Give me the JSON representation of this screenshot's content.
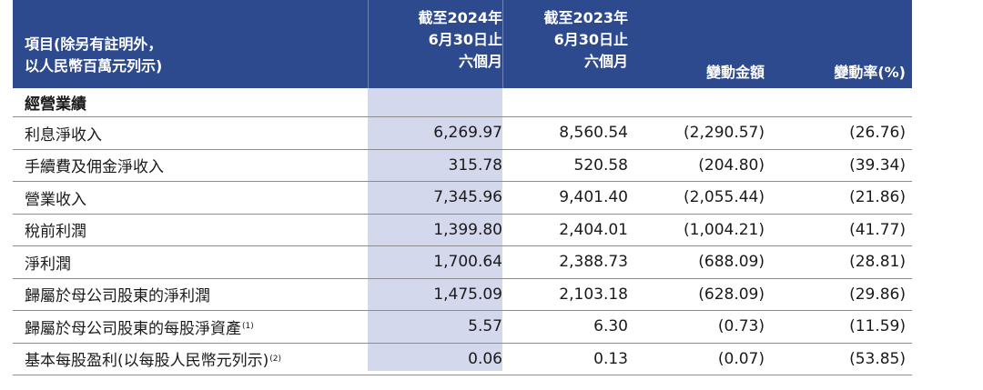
{
  "header": {
    "item_line1": "項目(除另有註明外，",
    "item_line2": "以人民幣百萬元列示)",
    "p2024_line1": "截至2024年",
    "p2024_line2": "6月30日止",
    "p2024_line3": "六個月",
    "p2023_line1": "截至2023年",
    "p2023_line2": "6月30日止",
    "p2023_line3": "六個月",
    "change": "變動金額",
    "rate": "變動率(%)"
  },
  "section_title": "經營業績",
  "rows": [
    {
      "label": "利息淨收入",
      "note": "",
      "v2024": "6,269.97",
      "v2023": "8,560.54",
      "change": "(2,290.57)",
      "rate": "(26.76)"
    },
    {
      "label": "手續費及佣金淨收入",
      "note": "",
      "v2024": "315.78",
      "v2023": "520.58",
      "change": "(204.80)",
      "rate": "(39.34)"
    },
    {
      "label": "營業收入",
      "note": "",
      "v2024": "7,345.96",
      "v2023": "9,401.40",
      "change": "(2,055.44)",
      "rate": "(21.86)"
    },
    {
      "label": "稅前利潤",
      "note": "",
      "v2024": "1,399.80",
      "v2023": "2,404.01",
      "change": "(1,004.21)",
      "rate": "(41.77)"
    },
    {
      "label": "淨利潤",
      "note": "",
      "v2024": "1,700.64",
      "v2023": "2,388.73",
      "change": "(688.09)",
      "rate": "(28.81)"
    },
    {
      "label": "歸屬於母公司股東的淨利潤",
      "note": "",
      "v2024": "1,475.09",
      "v2023": "2,103.18",
      "change": "(628.09)",
      "rate": "(29.86)"
    },
    {
      "label": "歸屬於母公司股東的每股淨資產",
      "note": "(1)",
      "v2024": "5.57",
      "v2023": "6.30",
      "change": "(0.73)",
      "rate": "(11.59)"
    },
    {
      "label": "基本每股盈利(以每股人民幣元列示)",
      "note": "(2)",
      "v2024": "0.06",
      "v2023": "0.13",
      "change": "(0.07)",
      "rate": "(53.85)"
    }
  ]
}
